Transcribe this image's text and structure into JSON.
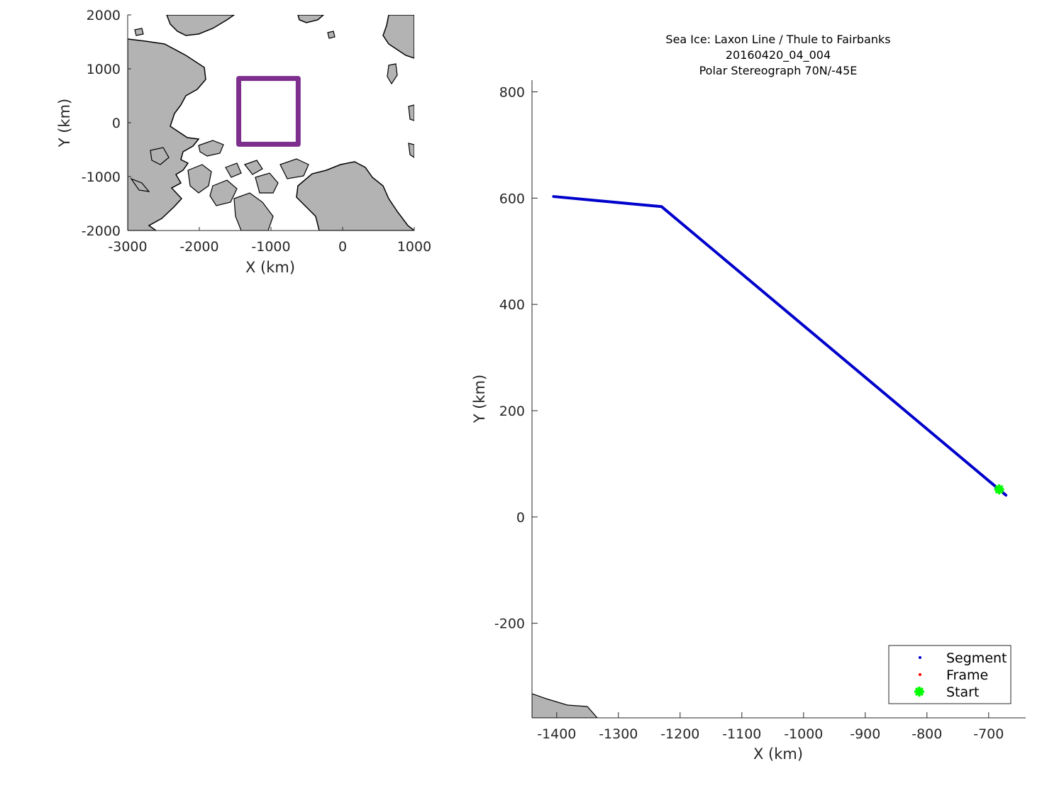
{
  "chart_data": [
    {
      "type": "map",
      "xlabel": "X (km)",
      "ylabel": "Y (km)",
      "xlim": [
        -3000,
        1000
      ],
      "ylim": [
        -2000,
        2000
      ],
      "xticks": [
        -3000,
        -2000,
        -1000,
        0,
        1000
      ],
      "yticks": [
        2000,
        1000,
        0,
        -1000,
        -2000
      ],
      "land_color": "#b3b3b3",
      "box_color": "#7e2f8e",
      "highlight_box": {
        "x": [
          -1450,
          -620
        ],
        "y": [
          -400,
          820
        ]
      }
    },
    {
      "type": "line",
      "title": [
        "Sea Ice: Laxon Line / Thule to Fairbanks",
        "20160420_04_004",
        "Polar Stereograph 70N/-45E"
      ],
      "xlabel": "X (km)",
      "ylabel": "Y (km)",
      "xlim": [
        -1440,
        -640
      ],
      "ylim": [
        -378,
        822
      ],
      "xticks": [
        -1400,
        -1300,
        -1200,
        -1100,
        -1000,
        -900,
        -800,
        -700
      ],
      "yticks": [
        800,
        600,
        400,
        200,
        0,
        -200
      ],
      "series": [
        {
          "name": "Segment",
          "color": "#0000cc",
          "x": [
            -1405,
            -1230,
            -672
          ],
          "y": [
            603,
            584,
            41
          ]
        },
        {
          "name": "Frame",
          "color": "#ff0000",
          "x": [],
          "y": []
        },
        {
          "name": "Start",
          "color": "#00ff00",
          "x": [
            -683
          ],
          "y": [
            52
          ]
        }
      ],
      "land_color": "#b3b3b3",
      "legend_position": "bottom-right"
    }
  ]
}
